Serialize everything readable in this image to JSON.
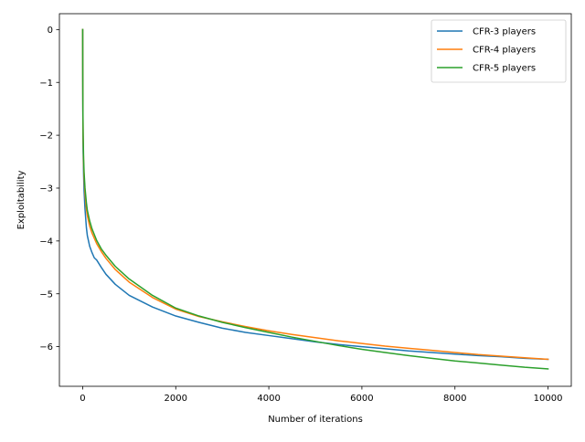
{
  "chart_data": {
    "type": "line",
    "xlabel": "Number of iterations",
    "ylabel": "Exploitability",
    "xlim": [
      -500,
      10500
    ],
    "ylim": [
      -6.75,
      0.3
    ],
    "xticks": [
      0,
      2000,
      4000,
      6000,
      8000,
      10000
    ],
    "xtick_labels": [
      "0",
      "2000",
      "4000",
      "6000",
      "8000",
      "10000"
    ],
    "yticks": [
      0,
      -1,
      -2,
      -3,
      -4,
      -5,
      -6
    ],
    "ytick_labels": [
      "0",
      "−1",
      "−2",
      "−3",
      "−4",
      "−5",
      "−6"
    ],
    "grid": false,
    "legend_position": "top-right",
    "series": [
      {
        "name": "CFR-3 players",
        "color": "#1f77b4",
        "x": [
          0,
          2,
          5,
          10,
          20,
          30,
          50,
          80,
          100,
          150,
          200,
          250,
          300,
          400,
          500,
          700,
          1000,
          1500,
          2000,
          2500,
          3000,
          3500,
          4000,
          4500,
          5000,
          5500,
          6000,
          6500,
          7000,
          7500,
          8000,
          8500,
          9000,
          9500,
          10000
        ],
        "y": [
          0,
          -1.0,
          -1.8,
          -2.3,
          -2.75,
          -3.05,
          -3.4,
          -3.75,
          -3.9,
          -4.1,
          -4.22,
          -4.32,
          -4.36,
          -4.5,
          -4.63,
          -4.82,
          -5.03,
          -5.25,
          -5.42,
          -5.54,
          -5.65,
          -5.73,
          -5.79,
          -5.85,
          -5.91,
          -5.96,
          -6.0,
          -6.04,
          -6.08,
          -6.11,
          -6.14,
          -6.17,
          -6.19,
          -6.22,
          -6.24
        ]
      },
      {
        "name": "CFR-4 players",
        "color": "#ff7f0e",
        "x": [
          0,
          2,
          5,
          10,
          20,
          30,
          50,
          80,
          100,
          150,
          200,
          300,
          400,
          500,
          700,
          1000,
          1500,
          2000,
          2500,
          3000,
          3500,
          4000,
          4500,
          5000,
          5500,
          6000,
          6500,
          7000,
          7500,
          8000,
          8500,
          9000,
          9500,
          10000
        ],
        "y": [
          0,
          -0.9,
          -1.6,
          -2.1,
          -2.55,
          -2.8,
          -3.1,
          -3.4,
          -3.52,
          -3.72,
          -3.85,
          -4.05,
          -4.2,
          -4.33,
          -4.54,
          -4.78,
          -5.07,
          -5.29,
          -5.43,
          -5.53,
          -5.62,
          -5.7,
          -5.77,
          -5.83,
          -5.89,
          -5.94,
          -5.99,
          -6.03,
          -6.07,
          -6.11,
          -6.15,
          -6.18,
          -6.21,
          -6.24
        ]
      },
      {
        "name": "CFR-5 players",
        "color": "#2ca02c",
        "x": [
          0,
          2,
          5,
          10,
          20,
          30,
          50,
          80,
          100,
          150,
          200,
          300,
          400,
          500,
          700,
          1000,
          1500,
          2000,
          2500,
          3000,
          3500,
          4000,
          4500,
          5000,
          5500,
          6000,
          6500,
          7000,
          7500,
          8000,
          8500,
          9000,
          9500,
          10000
        ],
        "y": [
          0,
          -0.8,
          -1.5,
          -2.0,
          -2.45,
          -2.7,
          -3.0,
          -3.28,
          -3.42,
          -3.62,
          -3.77,
          -3.99,
          -4.15,
          -4.27,
          -4.48,
          -4.72,
          -5.03,
          -5.27,
          -5.42,
          -5.54,
          -5.64,
          -5.73,
          -5.82,
          -5.9,
          -5.98,
          -6.05,
          -6.11,
          -6.17,
          -6.22,
          -6.27,
          -6.31,
          -6.35,
          -6.39,
          -6.42
        ]
      }
    ]
  }
}
